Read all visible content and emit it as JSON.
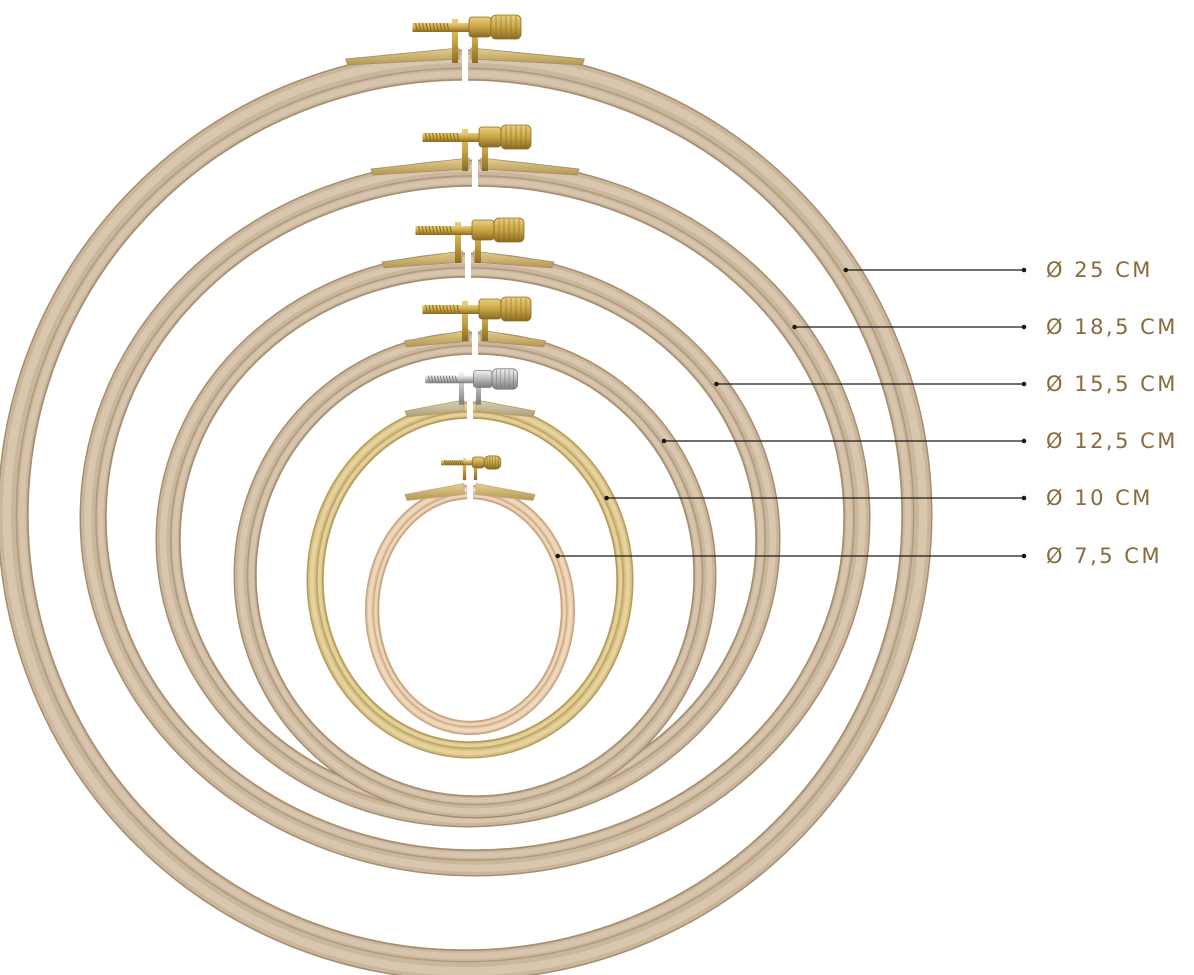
{
  "colors": {
    "wood_light": "#dccbb4",
    "wood_mid": "#cbb69b",
    "wood_dark": "#a58d70",
    "beech_light": "#f1dcc0",
    "beech_mid": "#e3c6a5",
    "beech_dark": "#c8a380",
    "bamboo_light": "#ead7a5",
    "bamboo_mid": "#d6bf83",
    "bamboo_dark": "#b49b58",
    "brass_light": "#e8cf7f",
    "brass_mid": "#c9a545",
    "brass_dark": "#8a6b22",
    "steel_light": "#e6e6e6",
    "steel_mid": "#b8b8b8",
    "steel_dark": "#7d7d7d",
    "leader_line": "#1a1a1a",
    "label_text": "#8a6a3c"
  },
  "hoops": [
    {
      "label": "Ø 25 CM",
      "material": "wood",
      "hardware": "brass"
    },
    {
      "label": "Ø 18,5 CM",
      "material": "wood",
      "hardware": "brass"
    },
    {
      "label": "Ø 15,5 CM",
      "material": "wood",
      "hardware": "brass"
    },
    {
      "label": "Ø 12,5 CM",
      "material": "wood",
      "hardware": "brass"
    },
    {
      "label": "Ø 10 CM",
      "material": "bamboo",
      "hardware": "steel"
    },
    {
      "label": "Ø 7,5 CM",
      "material": "beech",
      "hardware": "brass"
    }
  ]
}
